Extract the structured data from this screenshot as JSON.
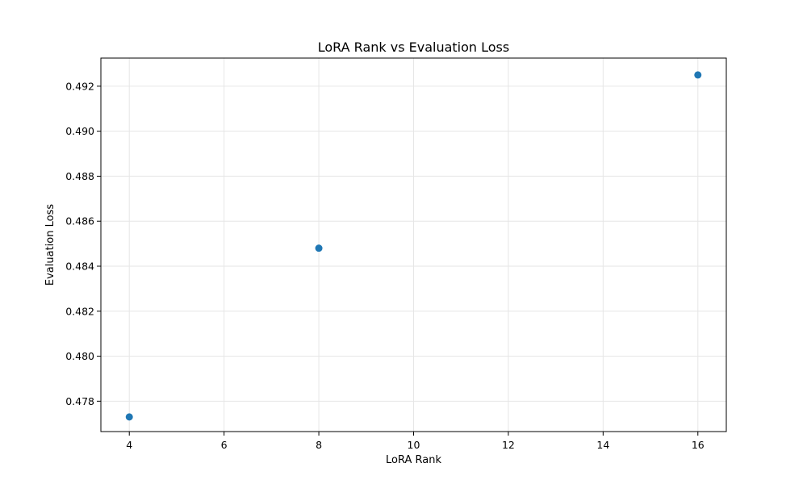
{
  "chart_data": {
    "type": "scatter",
    "title": "LoRA Rank vs Evaluation Loss",
    "xlabel": "LoRA Rank",
    "ylabel": "Evaluation Loss",
    "xlim": [
      3.4,
      16.6
    ],
    "ylim": [
      0.47665,
      0.49325
    ],
    "xticks": [
      4,
      6,
      8,
      10,
      12,
      14,
      16
    ],
    "yticks": [
      0.478,
      0.48,
      0.482,
      0.484,
      0.486,
      0.488,
      0.49,
      0.492
    ],
    "grid": true,
    "point_color": "#1f77b4",
    "grid_color": "#e6e6e6",
    "points": [
      {
        "x": 4,
        "y": 0.4773
      },
      {
        "x": 8,
        "y": 0.4848
      },
      {
        "x": 16,
        "y": 0.4925
      }
    ]
  }
}
